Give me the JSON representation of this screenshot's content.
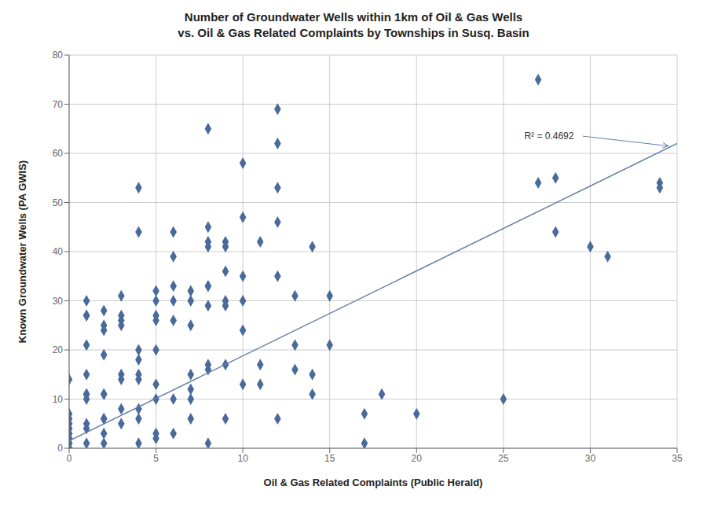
{
  "chart_data": {
    "type": "scatter",
    "title": "Number of Groundwater Wells within 1km of Oil & Gas Wells",
    "subtitle": "vs. Oil & Gas Related Complaints by Townships in Susq. Basin",
    "x_label": "Oil & Gas Related  Complaints (Public Herald)",
    "y_label": "Known Groundwater Wells (PA GWIS)",
    "xlim": [
      0,
      35
    ],
    "ylim": [
      0,
      80
    ],
    "xticks": [
      0,
      5,
      10,
      15,
      20,
      25,
      30,
      35
    ],
    "yticks": [
      0,
      10,
      20,
      30,
      40,
      50,
      60,
      70,
      80
    ],
    "grid": true,
    "series": [
      {
        "type": "scatter",
        "color": "#4a6a9a",
        "marker": "diamond",
        "x": [
          0,
          0,
          0,
          0,
          0,
          0,
          0,
          0,
          0,
          0,
          0,
          0,
          0,
          0,
          0,
          0,
          0,
          0,
          0,
          1,
          1,
          1,
          1,
          1,
          1,
          1,
          1,
          1,
          1,
          1,
          2,
          2,
          2,
          2,
          2,
          2,
          2,
          2,
          2,
          2,
          3,
          3,
          3,
          3,
          3,
          3,
          3,
          3,
          4,
          4,
          4,
          4,
          4,
          4,
          4,
          4,
          4,
          5,
          5,
          5,
          5,
          5,
          5,
          5,
          5,
          5,
          6,
          6,
          6,
          6,
          6,
          6,
          6,
          7,
          7,
          7,
          7,
          7,
          7,
          7,
          8,
          8,
          8,
          8,
          8,
          8,
          8,
          8,
          8,
          8,
          9,
          9,
          9,
          9,
          9,
          9,
          9,
          10,
          10,
          10,
          10,
          10,
          10,
          11,
          11,
          11,
          12,
          12,
          12,
          12,
          12,
          12,
          13,
          13,
          13,
          14,
          14,
          14,
          15,
          15,
          17,
          17,
          18,
          20,
          25,
          27,
          27,
          28,
          28,
          30,
          31,
          34,
          34
        ],
        "values": [
          14,
          7,
          6,
          5,
          5,
          4,
          4,
          3,
          3,
          2,
          2,
          2,
          1,
          1,
          1,
          0,
          0,
          0,
          0,
          30,
          27,
          27,
          21,
          15,
          11,
          11,
          10,
          5,
          4,
          1,
          28,
          25,
          24,
          19,
          11,
          11,
          6,
          6,
          3,
          1,
          31,
          27,
          26,
          25,
          15,
          14,
          8,
          5,
          53,
          44,
          20,
          18,
          15,
          14,
          8,
          6,
          1,
          32,
          30,
          27,
          26,
          20,
          13,
          10,
          3,
          2,
          44,
          39,
          33,
          30,
          26,
          10,
          3,
          32,
          30,
          25,
          15,
          12,
          10,
          6,
          65,
          45,
          42,
          41,
          33,
          33,
          29,
          17,
          16,
          1,
          42,
          41,
          36,
          30,
          29,
          17,
          6,
          58,
          47,
          35,
          30,
          24,
          13,
          42,
          17,
          13,
          69,
          62,
          53,
          46,
          35,
          6,
          31,
          21,
          16,
          41,
          15,
          11,
          31,
          21,
          7,
          1,
          11,
          7,
          10,
          75,
          54,
          55,
          44,
          41,
          39,
          54,
          53
        ]
      },
      {
        "type": "line",
        "color": "#6080a8",
        "x": [
          0,
          35
        ],
        "values": [
          1.5,
          62.0
        ]
      }
    ],
    "annotations": [
      {
        "text": "R² = 0.4692",
        "x": 26.2,
        "y": 63.5,
        "arrow_x": 34.5,
        "arrow_y": 61.5
      }
    ]
  }
}
